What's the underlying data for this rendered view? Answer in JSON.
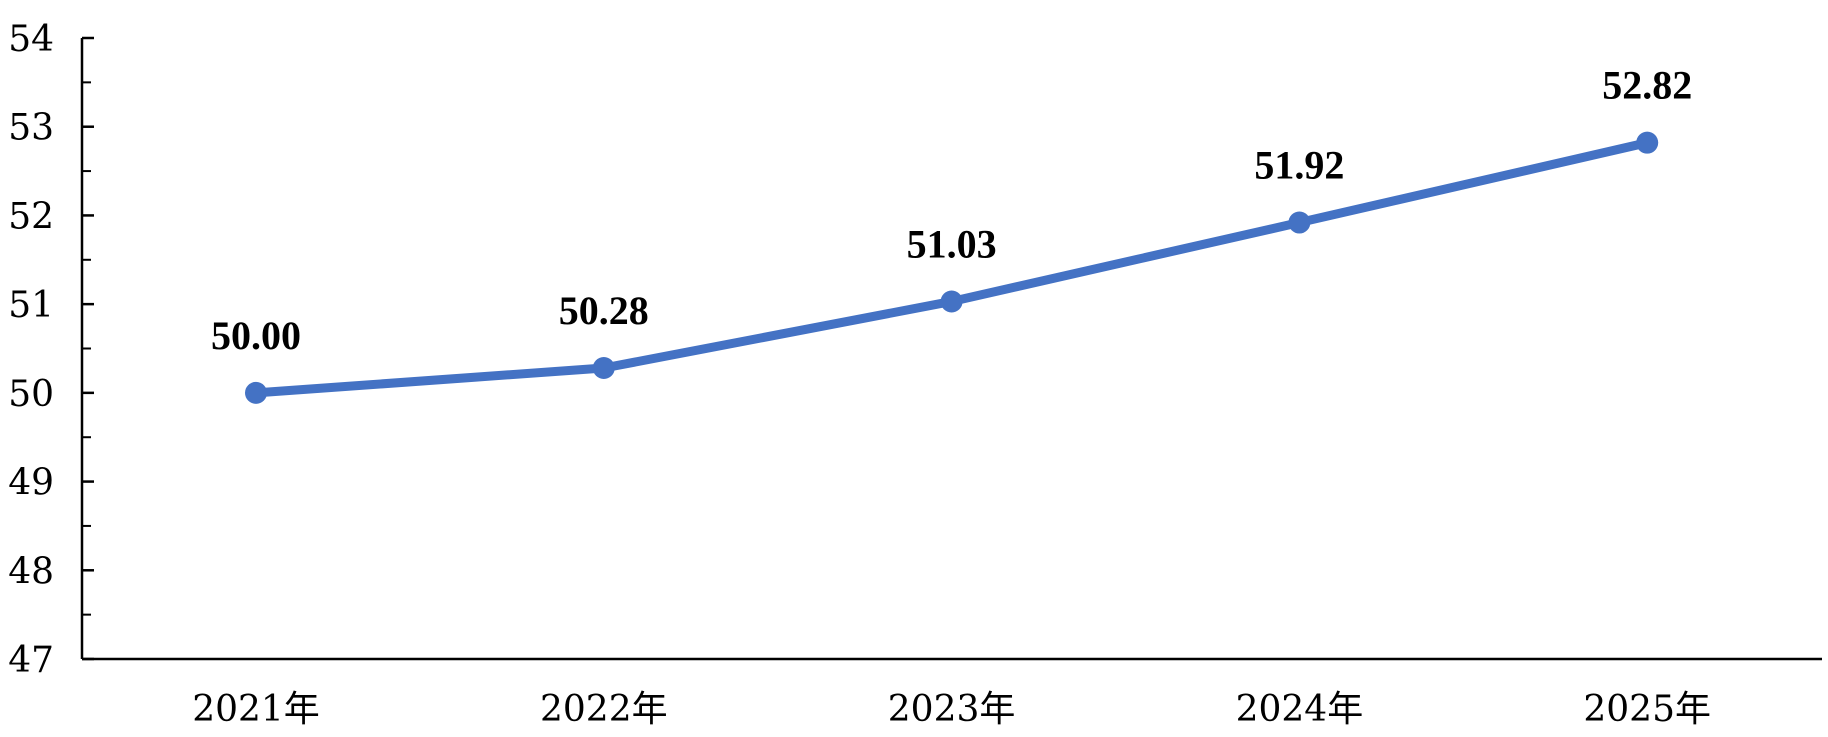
{
  "chart_data": {
    "type": "line",
    "categories": [
      "2021年",
      "2022年",
      "2023年",
      "2024年",
      "2025年"
    ],
    "series": [
      {
        "values": [
          50.0,
          50.28,
          51.03,
          51.92,
          52.82
        ],
        "data_labels": [
          "50.00",
          "50.28",
          "51.03",
          "51.92",
          "52.82"
        ],
        "color": "#4472C4"
      }
    ],
    "title": "",
    "xlabel": "",
    "ylabel": "",
    "ylim": [
      47,
      54
    ],
    "yticks": [
      47,
      48,
      49,
      50,
      51,
      52,
      53,
      54
    ],
    "ytick_labels": [
      "47",
      "48",
      "49",
      "50",
      "51",
      "52",
      "53",
      "54"
    ],
    "grid": false,
    "legend": "none"
  }
}
